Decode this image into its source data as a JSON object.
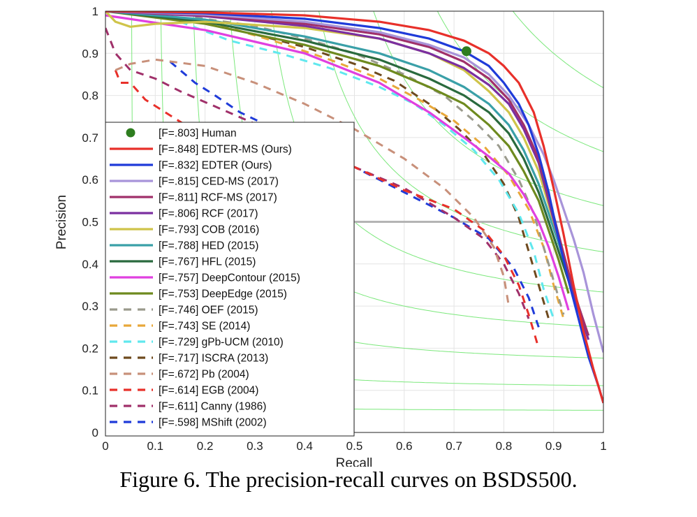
{
  "caption": "Figure 6. The precision-recall curves on BSDS500.",
  "chart_data": {
    "type": "line",
    "title": "",
    "xlabel": "Recall",
    "ylabel": "Precision",
    "xlim": [
      0,
      1
    ],
    "ylim": [
      0,
      1
    ],
    "xticks": [
      0,
      0.1,
      0.2,
      0.3,
      0.4,
      0.5,
      0.6,
      0.7,
      0.8,
      0.9,
      1
    ],
    "xtick_labels": [
      "0",
      "0.1",
      "0.2",
      "0.3",
      "0.4",
      "0.5",
      "0.6",
      "0.7",
      "0.8",
      "0.9",
      "1"
    ],
    "yticks": [
      0,
      0.1,
      0.2,
      0.3,
      0.4,
      0.5,
      0.6,
      0.7,
      0.8,
      0.9,
      1
    ],
    "ytick_labels": [
      "0",
      "0.1",
      "0.2",
      "0.3",
      "0.4",
      "0.5",
      "0.6",
      "0.7",
      "0.8",
      "0.9",
      "1"
    ],
    "grid": true,
    "legend_position": "left",
    "reference_line_y": 0.5,
    "iso_f_contours": [
      0.1,
      0.2,
      0.3,
      0.4,
      0.5,
      0.6,
      0.7,
      0.8,
      0.9
    ],
    "human_point": {
      "name": "[F=.803] Human",
      "recall": 0.725,
      "precision": 0.905,
      "color": "#2e7d1f"
    },
    "series": [
      {
        "name": "[F=.848] EDTER-MS (Ours)",
        "color": "#e8302a",
        "dashed": false,
        "points": [
          [
            0,
            1
          ],
          [
            0.2,
            0.997
          ],
          [
            0.4,
            0.99
          ],
          [
            0.55,
            0.975
          ],
          [
            0.65,
            0.955
          ],
          [
            0.72,
            0.93
          ],
          [
            0.77,
            0.9
          ],
          [
            0.8,
            0.87
          ],
          [
            0.83,
            0.83
          ],
          [
            0.86,
            0.76
          ],
          [
            0.88,
            0.68
          ],
          [
            0.9,
            0.58
          ],
          [
            0.92,
            0.47
          ],
          [
            0.94,
            0.35
          ],
          [
            0.96,
            0.24
          ],
          [
            0.98,
            0.15
          ],
          [
            1,
            0.07
          ]
        ]
      },
      {
        "name": "[F=.832] EDTER (Ours)",
        "color": "#1f3bd9",
        "dashed": false,
        "points": [
          [
            0,
            1
          ],
          [
            0.2,
            0.995
          ],
          [
            0.4,
            0.982
          ],
          [
            0.55,
            0.96
          ],
          [
            0.65,
            0.935
          ],
          [
            0.72,
            0.905
          ],
          [
            0.77,
            0.87
          ],
          [
            0.8,
            0.83
          ],
          [
            0.83,
            0.78
          ],
          [
            0.85,
            0.73
          ],
          [
            0.87,
            0.66
          ],
          [
            0.89,
            0.57
          ],
          [
            0.91,
            0.46
          ],
          [
            0.93,
            0.36
          ],
          [
            0.95,
            0.27
          ],
          [
            0.97,
            0.18
          ],
          [
            0.99,
            0.11
          ],
          [
            1,
            0.07
          ]
        ]
      },
      {
        "name": "[F=.815] CED-MS (2017)",
        "color": "#a894d9",
        "dashed": false,
        "points": [
          [
            0,
            1
          ],
          [
            0.2,
            0.992
          ],
          [
            0.4,
            0.975
          ],
          [
            0.55,
            0.95
          ],
          [
            0.65,
            0.92
          ],
          [
            0.72,
            0.89
          ],
          [
            0.77,
            0.85
          ],
          [
            0.81,
            0.8
          ],
          [
            0.85,
            0.73
          ],
          [
            0.88,
            0.66
          ],
          [
            0.9,
            0.6
          ],
          [
            0.92,
            0.53
          ],
          [
            0.94,
            0.46
          ],
          [
            0.96,
            0.38
          ],
          [
            0.98,
            0.28
          ],
          [
            1,
            0.19
          ]
        ]
      },
      {
        "name": "[F=.811] RCF-MS (2017)",
        "color": "#a0306a",
        "dashed": false,
        "points": [
          [
            0,
            1
          ],
          [
            0.2,
            0.99
          ],
          [
            0.4,
            0.97
          ],
          [
            0.55,
            0.945
          ],
          [
            0.65,
            0.915
          ],
          [
            0.72,
            0.88
          ],
          [
            0.77,
            0.84
          ],
          [
            0.81,
            0.79
          ],
          [
            0.84,
            0.73
          ],
          [
            0.87,
            0.65
          ],
          [
            0.89,
            0.56
          ],
          [
            0.91,
            0.47
          ],
          [
            0.93,
            0.38
          ],
          [
            0.95,
            0.3
          ],
          [
            0.97,
            0.23
          ]
        ]
      },
      {
        "name": "[F=.806] RCF (2017)",
        "color": "#7b2fa0",
        "dashed": false,
        "points": [
          [
            0,
            1
          ],
          [
            0.2,
            0.988
          ],
          [
            0.4,
            0.965
          ],
          [
            0.55,
            0.935
          ],
          [
            0.65,
            0.9
          ],
          [
            0.72,
            0.865
          ],
          [
            0.77,
            0.825
          ],
          [
            0.81,
            0.78
          ],
          [
            0.84,
            0.72
          ],
          [
            0.87,
            0.64
          ],
          [
            0.89,
            0.55
          ],
          [
            0.91,
            0.46
          ],
          [
            0.93,
            0.37
          ],
          [
            0.95,
            0.29
          ],
          [
            0.97,
            0.22
          ]
        ]
      },
      {
        "name": "[F=.793] COB (2016)",
        "color": "#cfc44a",
        "dashed": false,
        "points": [
          [
            0,
            1
          ],
          [
            0.02,
            0.975
          ],
          [
            0.05,
            0.963
          ],
          [
            0.1,
            0.97
          ],
          [
            0.2,
            0.975
          ],
          [
            0.4,
            0.96
          ],
          [
            0.55,
            0.935
          ],
          [
            0.65,
            0.9
          ],
          [
            0.72,
            0.86
          ],
          [
            0.77,
            0.81
          ],
          [
            0.81,
            0.76
          ],
          [
            0.84,
            0.7
          ],
          [
            0.87,
            0.62
          ],
          [
            0.89,
            0.54
          ],
          [
            0.91,
            0.46
          ],
          [
            0.93,
            0.37
          ],
          [
            0.95,
            0.29
          ],
          [
            0.97,
            0.23
          ]
        ]
      },
      {
        "name": "[F=.788] HED (2015)",
        "color": "#3aa0a8",
        "dashed": false,
        "points": [
          [
            0,
            1
          ],
          [
            0.2,
            0.98
          ],
          [
            0.4,
            0.94
          ],
          [
            0.55,
            0.9
          ],
          [
            0.65,
            0.86
          ],
          [
            0.72,
            0.82
          ],
          [
            0.77,
            0.78
          ],
          [
            0.81,
            0.73
          ],
          [
            0.84,
            0.67
          ],
          [
            0.87,
            0.59
          ],
          [
            0.89,
            0.52
          ],
          [
            0.91,
            0.45
          ],
          [
            0.93,
            0.37
          ],
          [
            0.95,
            0.3
          ]
        ]
      },
      {
        "name": "[F=.767] HFL (2015)",
        "color": "#2a6a3e",
        "dashed": false,
        "points": [
          [
            0,
            1
          ],
          [
            0.2,
            0.975
          ],
          [
            0.4,
            0.93
          ],
          [
            0.55,
            0.885
          ],
          [
            0.65,
            0.84
          ],
          [
            0.72,
            0.8
          ],
          [
            0.77,
            0.76
          ],
          [
            0.81,
            0.71
          ],
          [
            0.84,
            0.65
          ],
          [
            0.87,
            0.57
          ],
          [
            0.89,
            0.5
          ],
          [
            0.91,
            0.43
          ],
          [
            0.93,
            0.36
          ],
          [
            0.95,
            0.29
          ]
        ]
      },
      {
        "name": "[F=.757] DeepContour (2015)",
        "color": "#e040e0",
        "dashed": false,
        "points": [
          [
            0,
            0.99
          ],
          [
            0.2,
            0.955
          ],
          [
            0.4,
            0.9
          ],
          [
            0.55,
            0.83
          ],
          [
            0.65,
            0.76
          ],
          [
            0.72,
            0.7
          ],
          [
            0.77,
            0.655
          ],
          [
            0.81,
            0.615
          ],
          [
            0.84,
            0.565
          ],
          [
            0.87,
            0.5
          ],
          [
            0.89,
            0.44
          ],
          [
            0.91,
            0.37
          ],
          [
            0.93,
            0.29
          ]
        ]
      },
      {
        "name": "[F=.753] DeepEdge (2015)",
        "color": "#6e8a1f",
        "dashed": false,
        "points": [
          [
            0,
            1
          ],
          [
            0.2,
            0.97
          ],
          [
            0.4,
            0.92
          ],
          [
            0.55,
            0.87
          ],
          [
            0.65,
            0.82
          ],
          [
            0.72,
            0.78
          ],
          [
            0.77,
            0.73
          ],
          [
            0.81,
            0.68
          ],
          [
            0.84,
            0.62
          ],
          [
            0.87,
            0.55
          ],
          [
            0.89,
            0.48
          ],
          [
            0.91,
            0.41
          ],
          [
            0.93,
            0.33
          ]
        ]
      },
      {
        "name": "[F=.746] OEF (2015)",
        "color": "#9a9a8c",
        "dashed": true,
        "points": [
          [
            0.18,
            0.985
          ],
          [
            0.3,
            0.965
          ],
          [
            0.4,
            0.935
          ],
          [
            0.5,
            0.9
          ],
          [
            0.6,
            0.85
          ],
          [
            0.68,
            0.8
          ],
          [
            0.74,
            0.74
          ],
          [
            0.79,
            0.68
          ],
          [
            0.83,
            0.6
          ],
          [
            0.86,
            0.52
          ],
          [
            0.88,
            0.44
          ],
          [
            0.9,
            0.36
          ],
          [
            0.92,
            0.28
          ]
        ]
      },
      {
        "name": "[F=.743] SE (2014)",
        "color": "#e8a83a",
        "dashed": true,
        "points": [
          [
            0.15,
            0.985
          ],
          [
            0.25,
            0.96
          ],
          [
            0.35,
            0.925
          ],
          [
            0.45,
            0.885
          ],
          [
            0.55,
            0.84
          ],
          [
            0.63,
            0.79
          ],
          [
            0.7,
            0.74
          ],
          [
            0.76,
            0.68
          ],
          [
            0.81,
            0.61
          ],
          [
            0.85,
            0.53
          ],
          [
            0.88,
            0.44
          ],
          [
            0.9,
            0.35
          ],
          [
            0.92,
            0.27
          ]
        ]
      },
      {
        "name": "[F=.729] gPb-UCM (2010)",
        "color": "#60e8ee",
        "dashed": true,
        "points": [
          [
            0.15,
            0.975
          ],
          [
            0.25,
            0.93
          ],
          [
            0.35,
            0.9
          ],
          [
            0.45,
            0.865
          ],
          [
            0.55,
            0.82
          ],
          [
            0.62,
            0.78
          ],
          [
            0.68,
            0.73
          ],
          [
            0.74,
            0.67
          ],
          [
            0.79,
            0.6
          ],
          [
            0.83,
            0.52
          ],
          [
            0.86,
            0.43
          ],
          [
            0.88,
            0.34
          ],
          [
            0.9,
            0.27
          ]
        ]
      },
      {
        "name": "[F=.717] ISCRA (2013)",
        "color": "#6e4a1e",
        "dashed": true,
        "points": [
          [
            0.3,
            0.945
          ],
          [
            0.4,
            0.915
          ],
          [
            0.5,
            0.875
          ],
          [
            0.58,
            0.835
          ],
          [
            0.65,
            0.78
          ],
          [
            0.71,
            0.72
          ],
          [
            0.76,
            0.66
          ],
          [
            0.8,
            0.59
          ],
          [
            0.83,
            0.51
          ],
          [
            0.85,
            0.43
          ],
          [
            0.87,
            0.35
          ],
          [
            0.89,
            0.27
          ]
        ]
      },
      {
        "name": "[F=.672] Pb (2004)",
        "color": "#c8907a",
        "dashed": true,
        "points": [
          [
            0.02,
            0.86
          ],
          [
            0.05,
            0.875
          ],
          [
            0.1,
            0.885
          ],
          [
            0.2,
            0.87
          ],
          [
            0.3,
            0.83
          ],
          [
            0.4,
            0.78
          ],
          [
            0.5,
            0.72
          ],
          [
            0.6,
            0.65
          ],
          [
            0.68,
            0.58
          ],
          [
            0.74,
            0.51
          ],
          [
            0.78,
            0.44
          ],
          [
            0.8,
            0.37
          ],
          [
            0.81,
            0.3
          ]
        ]
      },
      {
        "name": "[F=.614] EGB (2004)",
        "color": "#e8302a",
        "dashed": true,
        "points": [
          [
            0.02,
            0.86
          ],
          [
            0.03,
            0.83
          ],
          [
            0.05,
            0.83
          ],
          [
            0.08,
            0.79
          ],
          [
            0.12,
            0.76
          ],
          [
            0.16,
            0.73
          ],
          [
            0.5,
            0.63
          ],
          [
            0.6,
            0.575
          ],
          [
            0.7,
            0.53
          ],
          [
            0.76,
            0.48
          ],
          [
            0.8,
            0.42
          ],
          [
            0.83,
            0.35
          ],
          [
            0.85,
            0.28
          ],
          [
            0.87,
            0.2
          ]
        ]
      },
      {
        "name": "[F=.611] Canny (1986)",
        "color": "#a0306a",
        "dashed": true,
        "points": [
          [
            0,
            0.96
          ],
          [
            0.02,
            0.9
          ],
          [
            0.05,
            0.86
          ],
          [
            0.1,
            0.84
          ],
          [
            0.15,
            0.81
          ],
          [
            0.5,
            0.63
          ],
          [
            0.6,
            0.58
          ],
          [
            0.7,
            0.51
          ],
          [
            0.76,
            0.46
          ],
          [
            0.8,
            0.4
          ],
          [
            0.83,
            0.33
          ],
          [
            0.85,
            0.27
          ]
        ]
      },
      {
        "name": "[F=.598] MShift (2002)",
        "color": "#1f3bd9",
        "dashed": true,
        "points": [
          [
            0.13,
            0.88
          ],
          [
            0.18,
            0.83
          ],
          [
            0.22,
            0.8
          ],
          [
            0.27,
            0.76
          ],
          [
            0.5,
            0.63
          ],
          [
            0.6,
            0.57
          ],
          [
            0.7,
            0.51
          ],
          [
            0.77,
            0.46
          ],
          [
            0.82,
            0.39
          ],
          [
            0.85,
            0.32
          ],
          [
            0.87,
            0.25
          ]
        ]
      }
    ]
  }
}
